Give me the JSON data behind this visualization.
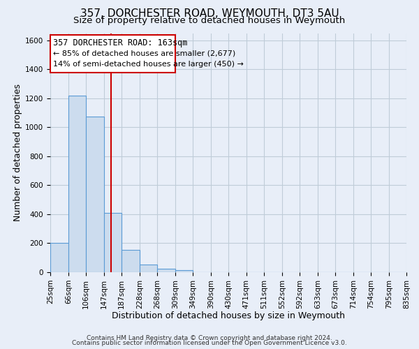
{
  "title": "357, DORCHESTER ROAD, WEYMOUTH, DT3 5AU",
  "subtitle": "Size of property relative to detached houses in Weymouth",
  "xlabel": "Distribution of detached houses by size in Weymouth",
  "ylabel": "Number of detached properties",
  "footer_lines": [
    "Contains HM Land Registry data © Crown copyright and database right 2024.",
    "Contains public sector information licensed under the Open Government Licence v3.0."
  ],
  "bin_edges": [
    25,
    66,
    106,
    147,
    187,
    228,
    268,
    309,
    349,
    390,
    430,
    471,
    511,
    552,
    592,
    633,
    673,
    714,
    754,
    795,
    835
  ],
  "bin_labels": [
    "25sqm",
    "66sqm",
    "106sqm",
    "147sqm",
    "187sqm",
    "228sqm",
    "268sqm",
    "309sqm",
    "349sqm",
    "390sqm",
    "430sqm",
    "471sqm",
    "511sqm",
    "552sqm",
    "592sqm",
    "633sqm",
    "673sqm",
    "714sqm",
    "754sqm",
    "795sqm",
    "835sqm"
  ],
  "counts": [
    200,
    1220,
    1075,
    410,
    155,
    55,
    25,
    15,
    0,
    0,
    0,
    0,
    0,
    0,
    0,
    0,
    0,
    0,
    0,
    0
  ],
  "bar_color": "#ccdcee",
  "bar_edge_color": "#5b9bd5",
  "property_size": 163,
  "property_label": "357 DORCHESTER ROAD: 163sqm",
  "pct_smaller": 85,
  "n_smaller": 2677,
  "pct_larger": 14,
  "n_larger": 450,
  "vline_color": "#cc0000",
  "annotation_box_edge": "#cc0000",
  "ylim": [
    0,
    1650
  ],
  "yticks": [
    0,
    200,
    400,
    600,
    800,
    1000,
    1200,
    1400,
    1600
  ],
  "background_color": "#e8eef8",
  "grid_color": "#c0ccd8",
  "title_fontsize": 11,
  "subtitle_fontsize": 9.5,
  "axis_label_fontsize": 9,
  "tick_fontsize": 7.5,
  "footer_fontsize": 6.5
}
